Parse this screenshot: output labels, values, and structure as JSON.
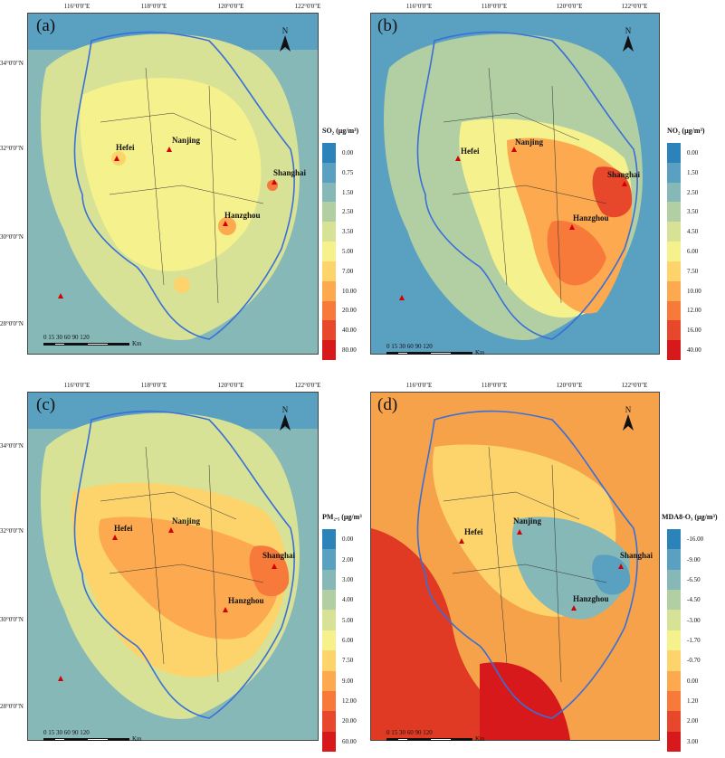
{
  "panels": [
    {
      "label": "(a)",
      "legend_title": "SO₂ (μg/m³)",
      "legend_values": [
        "0.00",
        "0.75",
        "1.50",
        "2.50",
        "3.50",
        "5.00",
        "7.00",
        "10.00",
        "20.00",
        "40.00",
        "80.00"
      ],
      "legend_colors": [
        "#2b83ba",
        "#5aa0c0",
        "#86b8b8",
        "#b2cfa4",
        "#d7e297",
        "#f5f28e",
        "#fdd46c",
        "#fca94f",
        "#f77a3a",
        "#e7472a",
        "#d7191c"
      ],
      "top_ticks": [
        "116°0'0\"E",
        "118°0'0\"E",
        "120°0'0\"E",
        "122°0'0\"E"
      ],
      "left_ticks": [
        "34°0'0\"N",
        "32°0'0\"N",
        "30°0'0\"N",
        "28°0'0\"N"
      ],
      "cities": [
        "Hefei",
        "Nanjing",
        "Shanghai",
        "Hanzghou"
      ]
    },
    {
      "label": "(b)",
      "legend_title": "NO₂ (μg/m³)",
      "legend_values": [
        "0.00",
        "1.50",
        "2.50",
        "3.50",
        "4.50",
        "6.00",
        "7.50",
        "10.00",
        "12.00",
        "16.00",
        "40.00"
      ],
      "legend_colors": [
        "#2b83ba",
        "#5aa0c0",
        "#86b8b8",
        "#b2cfa4",
        "#d7e297",
        "#f5f28e",
        "#fdd46c",
        "#fca94f",
        "#f77a3a",
        "#e7472a",
        "#d7191c"
      ],
      "top_ticks": [
        "116°0'0\"E",
        "118°0'0\"E",
        "120°0'0\"E",
        "122°0'0\"E"
      ],
      "left_ticks": [
        "34°0'0\"N",
        "32°0'0\"N",
        "30°0'0\"N",
        "28°0'0\"N"
      ],
      "cities": [
        "Hefei",
        "Nanjing",
        "Shanghai",
        "Hanzghou"
      ]
    },
    {
      "label": "(c)",
      "legend_title": "PM₂.₅ (μg/m³)",
      "legend_values": [
        "0.00",
        "2.00",
        "3.00",
        "4.00",
        "5.00",
        "6.00",
        "7.50",
        "9.00",
        "12.00",
        "20.00",
        "60.00"
      ],
      "legend_colors": [
        "#2b83ba",
        "#5aa0c0",
        "#86b8b8",
        "#b2cfa4",
        "#d7e297",
        "#f5f28e",
        "#fdd46c",
        "#fca94f",
        "#f77a3a",
        "#e7472a",
        "#d7191c"
      ],
      "top_ticks": [
        "116°0'0\"E",
        "118°0'0\"E",
        "120°0'0\"E",
        "122°0'0\"E"
      ],
      "left_ticks": [
        "34°0'0\"N",
        "32°0'0\"N",
        "30°0'0\"N",
        "28°0'0\"N"
      ],
      "cities": [
        "Hefei",
        "Nanjing",
        "Shanghai",
        "Hanzghou"
      ]
    },
    {
      "label": "(d)",
      "legend_title": "MDA8-O₃ (μg/m³)",
      "legend_values": [
        "-16.00",
        "-9.00",
        "-6.50",
        "-4.50",
        "-3.00",
        "-1.70",
        "-0.70",
        "0.00",
        "1.20",
        "2.00",
        "3.00"
      ],
      "legend_colors": [
        "#2b83ba",
        "#5aa0c0",
        "#86b8b8",
        "#b2cfa4",
        "#d7e297",
        "#f5f28e",
        "#fdd46c",
        "#fca94f",
        "#f77a3a",
        "#e7472a",
        "#d7191c"
      ],
      "top_ticks": [
        "116°0'0\"E",
        "118°0'0\"E",
        "120°0'0\"E",
        "122°0'0\"E"
      ],
      "left_ticks": [
        "34°0'0\"N",
        "32°0'0\"N",
        "30°0'0\"N",
        "28°0'0\"N"
      ],
      "cities": [
        "Hefei",
        "Nanjing",
        "Shanghai",
        "Hanzghou"
      ]
    }
  ],
  "north_label": "N",
  "scale_numbers": "0  15 30      60        90       120",
  "scale_unit": "Km",
  "colors": {
    "region_outline": "#3a6fd8",
    "county_lines": "#333333",
    "city_marker": "#d40000"
  }
}
